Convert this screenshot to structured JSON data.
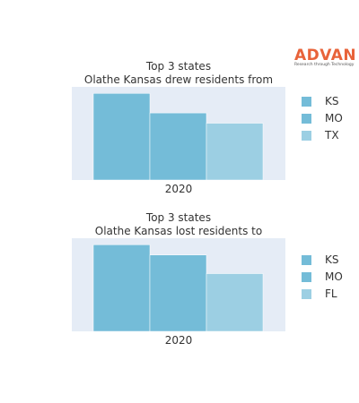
{
  "logo": {
    "word": "ADVAN",
    "tagline": "Research through Technology"
  },
  "chart_data": [
    {
      "type": "bar",
      "title_lines": [
        "Top 3 states",
        "Olathe Kansas drew residents from"
      ],
      "categories": [
        "2020"
      ],
      "series": [
        {
          "name": "KS",
          "values": [
            93
          ],
          "color": "#74bcd8"
        },
        {
          "name": "MO",
          "values": [
            72
          ],
          "color": "#74bcd8"
        },
        {
          "name": "TX",
          "values": [
            61
          ],
          "color": "#9ccfe3"
        }
      ],
      "ylim": [
        0,
        100
      ],
      "grid": false,
      "plot_background": "#e5ecf6",
      "legend_position": "right"
    },
    {
      "type": "bar",
      "title_lines": [
        "Top 3 states",
        "Olathe Kansas lost residents to"
      ],
      "categories": [
        "2020"
      ],
      "series": [
        {
          "name": "KS",
          "values": [
            93
          ],
          "color": "#74bcd8"
        },
        {
          "name": "MO",
          "values": [
            82
          ],
          "color": "#74bcd8"
        },
        {
          "name": "FL",
          "values": [
            62
          ],
          "color": "#9ccfe3"
        }
      ],
      "ylim": [
        0,
        100
      ],
      "grid": false,
      "plot_background": "#e5ecf6",
      "legend_position": "right"
    }
  ]
}
